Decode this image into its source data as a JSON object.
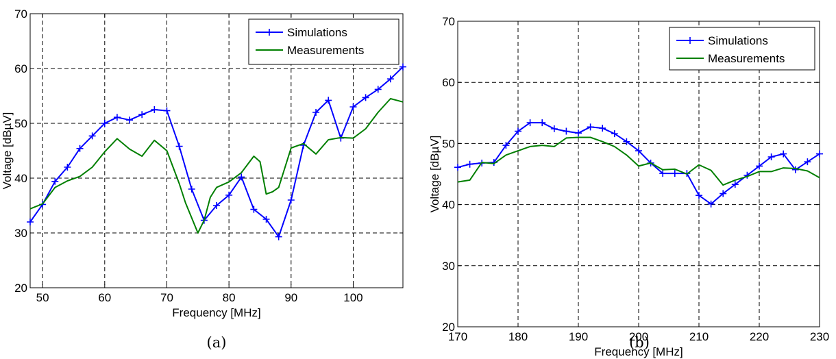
{
  "chart_data": [
    {
      "type": "line",
      "caption": "(a)",
      "xlabel": "Frequency [MHz]",
      "ylabel": "Voltage [dBµV]",
      "xlim": [
        48,
        108
      ],
      "ylim": [
        20,
        70
      ],
      "xticks": [
        50,
        60,
        70,
        80,
        90,
        100
      ],
      "yticks": [
        20,
        30,
        40,
        50,
        60,
        70
      ],
      "grid": true,
      "legend_position": "top-right",
      "series": [
        {
          "name": "Simulations",
          "color": "#0000ff",
          "marker": "plus",
          "x": [
            48,
            50,
            52,
            54,
            56,
            58,
            60,
            62,
            64,
            66,
            68,
            70,
            72,
            74,
            76,
            78,
            80,
            82,
            84,
            86,
            88,
            90,
            92,
            94,
            96,
            98,
            100,
            102,
            104,
            106,
            108
          ],
          "y": [
            32,
            35.2,
            39.4,
            42.0,
            45.4,
            47.7,
            50.0,
            51.1,
            50.6,
            51.6,
            52.5,
            52.3,
            45.8,
            38.0,
            32.3,
            35.0,
            36.9,
            40.2,
            34.3,
            32.5,
            29.3,
            36.0,
            46.0,
            52.0,
            54.2,
            47.3,
            53.0,
            54.7,
            56.2,
            58.1,
            60.3
          ]
        },
        {
          "name": "Measurements",
          "color": "#007f00",
          "marker": "none",
          "x": [
            48,
            50,
            52,
            54,
            56,
            58,
            60,
            62,
            64,
            66,
            68,
            70,
            72,
            73,
            75,
            76,
            77,
            78,
            80,
            82,
            84,
            85,
            86,
            87,
            88,
            90,
            92,
            94,
            96,
            98,
            100,
            102,
            104,
            106,
            108
          ],
          "y": [
            34.4,
            35.3,
            38.3,
            39.5,
            40.3,
            42.0,
            44.8,
            47.2,
            45.3,
            44.0,
            46.9,
            45.0,
            39.0,
            35.5,
            30.0,
            32.3,
            36.5,
            38.3,
            39.3,
            41.0,
            44.0,
            43.0,
            37.1,
            37.5,
            38.3,
            45.5,
            46.3,
            44.4,
            47.0,
            47.4,
            47.3,
            49.0,
            52.0,
            54.5,
            53.9
          ]
        }
      ]
    },
    {
      "type": "line",
      "caption": "(b)",
      "xlabel": "Frequency [MHz]",
      "ylabel": "Voltage [dBµV]",
      "xlim": [
        170,
        230
      ],
      "ylim": [
        20,
        70
      ],
      "xticks": [
        170,
        180,
        190,
        200,
        210,
        220,
        230
      ],
      "yticks": [
        20,
        30,
        40,
        50,
        60,
        70
      ],
      "grid": true,
      "legend_position": "top-right",
      "series": [
        {
          "name": "Simulations",
          "color": "#0000ff",
          "marker": "plus",
          "x": [
            170,
            172,
            174,
            176,
            178,
            180,
            182,
            184,
            186,
            188,
            190,
            192,
            194,
            196,
            198,
            200,
            202,
            204,
            206,
            208,
            210,
            212,
            214,
            216,
            218,
            220,
            222,
            224,
            226,
            228,
            230
          ],
          "y": [
            46.1,
            46.6,
            46.8,
            46.9,
            49.7,
            52.0,
            53.4,
            53.4,
            52.4,
            52.0,
            51.7,
            52.7,
            52.5,
            51.6,
            50.3,
            48.8,
            46.8,
            45.1,
            45.1,
            45.1,
            41.5,
            40.1,
            41.8,
            43.3,
            44.8,
            46.3,
            47.8,
            48.3,
            45.7,
            47.0,
            48.3
          ]
        },
        {
          "name": "Measurements",
          "color": "#007f00",
          "marker": "none",
          "x": [
            170,
            172,
            174,
            176,
            178,
            180,
            182,
            184,
            186,
            188,
            190,
            192,
            194,
            196,
            198,
            200,
            202,
            204,
            206,
            208,
            210,
            212,
            214,
            216,
            218,
            220,
            222,
            224,
            226,
            228,
            230
          ],
          "y": [
            43.7,
            44.0,
            46.9,
            46.7,
            48.1,
            48.8,
            49.5,
            49.7,
            49.5,
            50.9,
            51.0,
            51.0,
            50.3,
            49.5,
            48.1,
            46.3,
            46.8,
            45.7,
            45.8,
            45.0,
            46.5,
            45.6,
            43.2,
            44.0,
            44.6,
            45.4,
            45.4,
            46.0,
            45.9,
            45.5,
            44.4
          ]
        }
      ]
    }
  ]
}
